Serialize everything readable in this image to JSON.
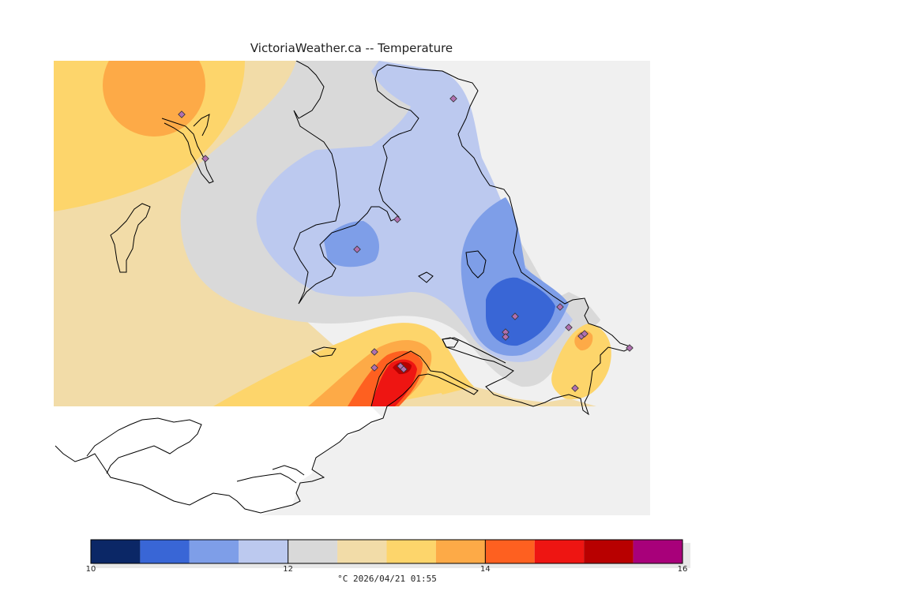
{
  "title": "VictoriaWeather.ca -- Temperature",
  "colors": {
    "land_outside": "#f0f0f0",
    "water_outside": "#ffffff",
    "coast": "#000000",
    "station_marker": "#b070b0"
  },
  "legend": {
    "units": "°C",
    "timestamp": "2026/04/21 01:55",
    "ticks": [
      "10",
      "12",
      "14",
      "16"
    ],
    "tick_values": [
      10,
      12,
      14,
      16
    ],
    "min": 10,
    "max": 16,
    "bins": [
      {
        "from": 10.0,
        "to": 10.5,
        "color": "#0b2766"
      },
      {
        "from": 10.5,
        "to": 11.0,
        "color": "#3966d6"
      },
      {
        "from": 11.0,
        "to": 11.5,
        "color": "#7e9ee8"
      },
      {
        "from": 11.5,
        "to": 12.0,
        "color": "#bcc9ef"
      },
      {
        "from": 12.0,
        "to": 12.5,
        "color": "#d9d9d9"
      },
      {
        "from": 12.5,
        "to": 13.0,
        "color": "#f2dca8"
      },
      {
        "from": 13.0,
        "to": 13.5,
        "color": "#fdd56b"
      },
      {
        "from": 13.5,
        "to": 14.0,
        "color": "#fdaa47"
      },
      {
        "from": 14.0,
        "to": 14.5,
        "color": "#fe6020"
      },
      {
        "from": 14.5,
        "to": 15.0,
        "color": "#ee1512"
      },
      {
        "from": 15.0,
        "to": 15.5,
        "color": "#b80000"
      },
      {
        "from": 15.5,
        "to": 16.0,
        "color": "#a8007a"
      }
    ]
  },
  "stations_count": 18
}
